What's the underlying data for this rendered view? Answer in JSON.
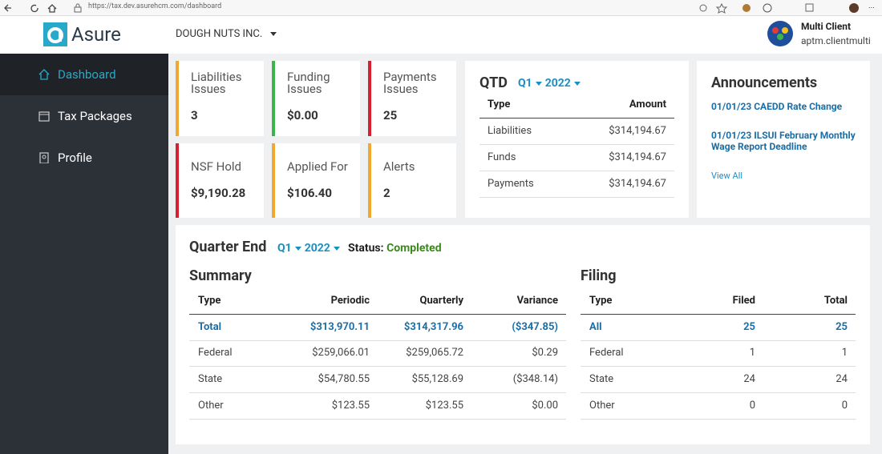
{
  "browser": {
    "url": "https://tax.dev.asurehcm.com/dashboard"
  },
  "header": {
    "logo": "Asure",
    "company": "DOUGH NUTS INC.",
    "user_name": "Multi Client",
    "user_id": "aptm.clientmulti"
  },
  "sidebar": {
    "items": [
      "Dashboard",
      "Tax Packages",
      "Profile"
    ]
  },
  "tiles": [
    {
      "label": "Liabilities Issues",
      "value": "3"
    },
    {
      "label": "Funding Issues",
      "value": "$0.00"
    },
    {
      "label": "Payments Issues",
      "value": "25"
    },
    {
      "label": "NSF Hold",
      "value": "$9,190.28"
    },
    {
      "label": "Applied For",
      "value": "$106.40"
    },
    {
      "label": "Alerts",
      "value": "2"
    }
  ],
  "qtd": {
    "title": "QTD",
    "quarter": "Q1",
    "year": "2022",
    "columns": [
      "Type",
      "Amount"
    ],
    "rows": [
      [
        "Liabilities",
        "$314,194.67"
      ],
      [
        "Funds",
        "$314,194.67"
      ],
      [
        "Payments",
        "$314,194.67"
      ]
    ]
  },
  "announcements": {
    "title": "Announcements",
    "items": [
      "01/01/23 CAEDD Rate Change",
      "01/01/23 ILSUI February Monthly Wage Report Deadline"
    ],
    "link": "View All"
  },
  "quarter_end": {
    "title": "Quarter End",
    "quarter": "Q1",
    "year": "2022",
    "status_label": "Status:",
    "status": "Completed",
    "summary": {
      "title": "Summary",
      "columns": [
        "Type",
        "Periodic",
        "Quarterly",
        "Variance"
      ],
      "rows": [
        [
          "Total",
          "$313,970.11",
          "$314,317.96",
          "($347.85)"
        ],
        [
          "Federal",
          "$259,066.01",
          "$259,065.72",
          "$0.29"
        ],
        [
          "State",
          "$54,780.55",
          "$55,128.69",
          "($348.14)"
        ],
        [
          "Other",
          "$123.55",
          "$123.55",
          "$0.00"
        ]
      ]
    },
    "filing": {
      "title": "Filing",
      "columns": [
        "Type",
        "Filed",
        "Total"
      ],
      "rows": [
        [
          "All",
          "25",
          "25"
        ],
        [
          "Federal",
          "1",
          "1"
        ],
        [
          "State",
          "24",
          "24"
        ],
        [
          "Other",
          "0",
          "0"
        ]
      ]
    }
  }
}
